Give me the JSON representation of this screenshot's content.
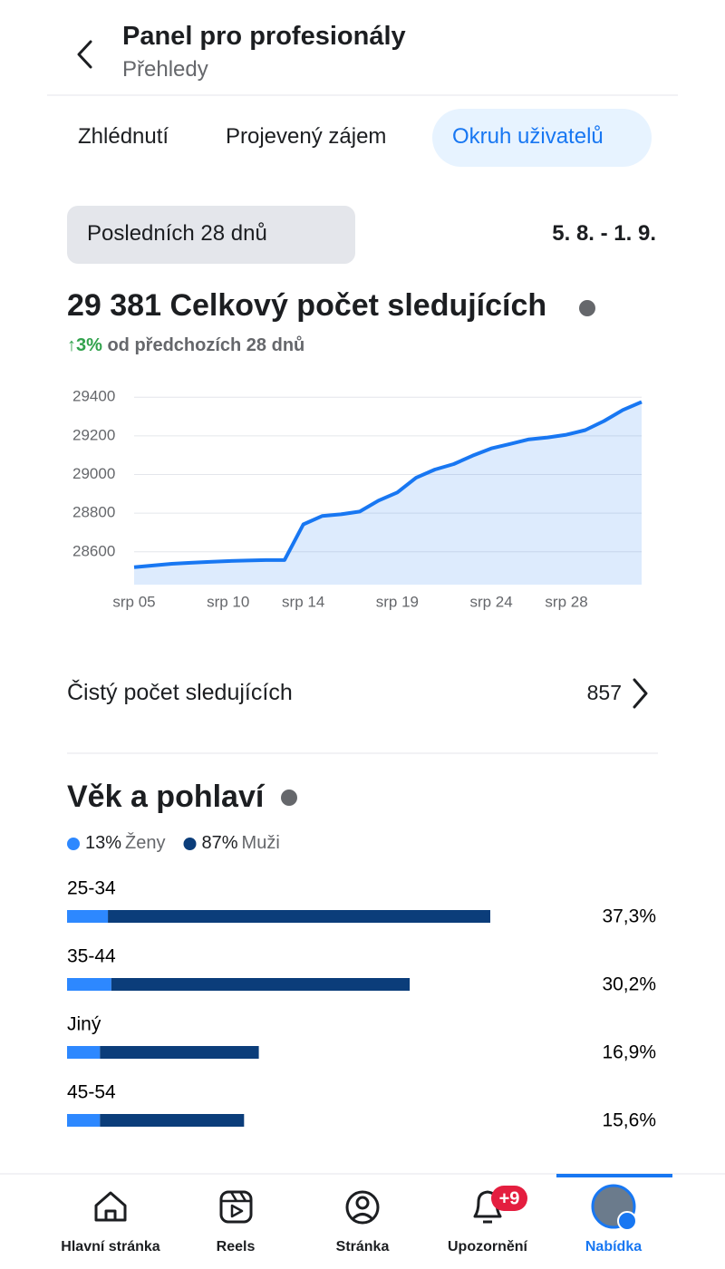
{
  "header": {
    "title": "Panel pro profesionály",
    "subtitle": "Přehledy"
  },
  "tabs": {
    "items": [
      "Zhlédnutí",
      "Projevený zájem",
      "Okruh uživatelů"
    ],
    "active": 2
  },
  "period": {
    "label": "Posledních 28 dnů",
    "range": "5. 8. - 1. 9."
  },
  "followers": {
    "total": "29 381",
    "title": "Celkový počet sledujících",
    "change": "↑3%",
    "change_text": "od předchozích 28 dnů"
  },
  "net_followers": {
    "label": "Čistý počet sledujících",
    "value": "857"
  },
  "age_gender_title": "Věk a pohlaví",
  "chart_data": [
    {
      "type": "area",
      "categories": [
        "srp 05",
        null,
        null,
        null,
        null,
        "srp 10",
        null,
        null,
        null,
        "srp 14",
        null,
        null,
        null,
        null,
        "srp 19",
        null,
        null,
        null,
        null,
        "srp 24",
        null,
        null,
        null,
        "srp 28",
        null,
        null,
        null,
        null
      ],
      "values": [
        28520,
        28529,
        28538,
        28543,
        28548,
        28552,
        28555,
        28557,
        28557,
        28742,
        28785,
        28794,
        28808,
        28865,
        28907,
        28983,
        29026,
        29054,
        29097,
        29135,
        29158,
        29182,
        29192,
        29206,
        29230,
        29277,
        29334,
        29376
      ],
      "color": "#1877f2",
      "ylim": [
        28430,
        29420
      ],
      "yticks": [
        28600,
        28800,
        29000,
        29200,
        29400
      ],
      "grid": true
    },
    {
      "type": "stacked-barh",
      "categories": [
        "25-34",
        "35-44",
        "Jiný",
        "45-54"
      ],
      "series": [
        {
          "name": "Ženy",
          "share_label": "13%",
          "color": "#2d88ff",
          "values": [
            3.6,
            3.9,
            2.9,
            2.9
          ]
        },
        {
          "name": "Muži",
          "share_label": "87%",
          "color": "#0b3d7a",
          "values": [
            33.7,
            26.3,
            14.0,
            12.7
          ]
        }
      ],
      "totals": [
        37.3,
        30.2,
        16.9,
        15.6
      ],
      "total_labels": [
        "37,3%",
        "30,2%",
        "16,9%",
        "15,6%"
      ],
      "xlim": [
        0,
        50
      ]
    }
  ],
  "nav": {
    "items": [
      "Hlavní stránka",
      "Reels",
      "Stránka",
      "Upozornění",
      "Nabídka"
    ],
    "active": 4,
    "badge": "+9"
  }
}
